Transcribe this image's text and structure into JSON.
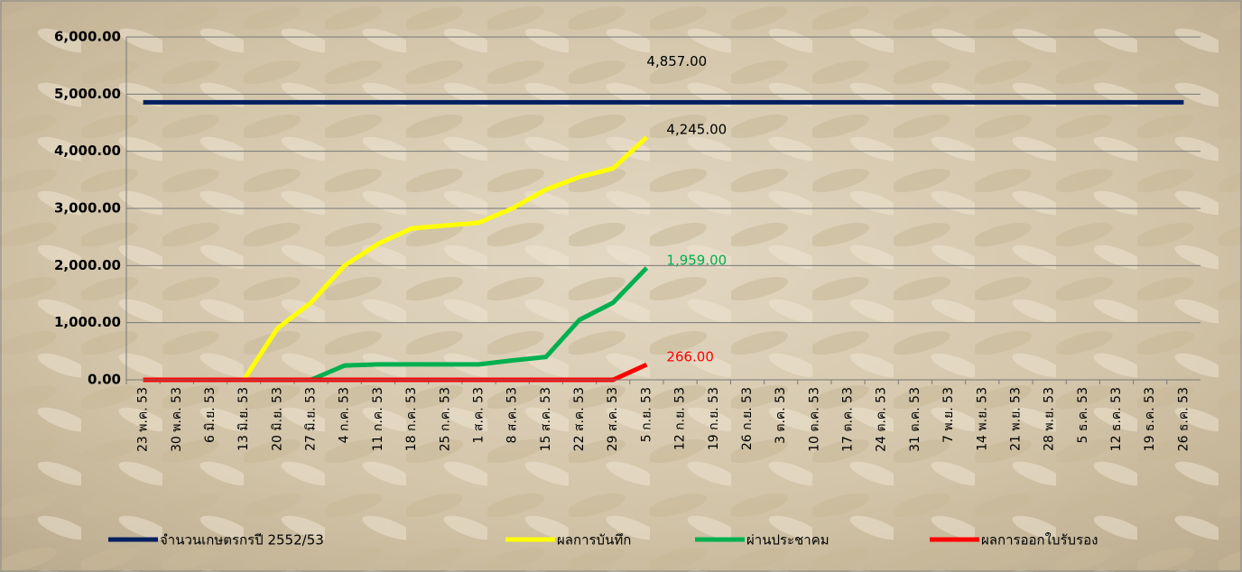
{
  "chart_data": {
    "type": "line",
    "categories": [
      "23 พ.ค. 53",
      "30 พ.ค. 53",
      "6 มิ.ย. 53",
      "13 มิ.ย. 53",
      "20 มิ.ย. 53",
      "27 มิ.ย. 53",
      "4 ก.ค. 53",
      "11 ก.ค. 53",
      "18 ก.ค. 53",
      "25 ก.ค. 53",
      "1 ส.ค. 53",
      "8 ส.ค. 53",
      "15 ส.ค. 53",
      "22 ส.ค. 53",
      "29 ส.ค. 53",
      "5 ก.ย. 53",
      "12 ก.ย. 53",
      "19 ก.ย. 53",
      "26 ก.ย. 53",
      "3 ต.ค. 53",
      "10 ต.ค. 53",
      "17 ต.ค. 53",
      "24 ต.ค. 53",
      "31 ต.ค. 53",
      "7 พ.ย. 53",
      "14 พ.ย. 53",
      "21 พ.ย. 53",
      "28 พ.ย. 53",
      "5 ธ.ค. 53",
      "12 ธ.ค. 53",
      "19 ธ.ค. 53",
      "26 ธ.ค. 53"
    ],
    "series": [
      {
        "name": "จำนวนเกษตรกรปี  2552/53",
        "color": "#002060",
        "label_color": "#000000",
        "values": [
          4857,
          4857,
          4857,
          4857,
          4857,
          4857,
          4857,
          4857,
          4857,
          4857,
          4857,
          4857,
          4857,
          4857,
          4857,
          4857,
          4857,
          4857,
          4857,
          4857,
          4857,
          4857,
          4857,
          4857,
          4857,
          4857,
          4857,
          4857,
          4857,
          4857,
          4857,
          4857
        ],
        "value_labels": [
          null,
          null,
          null,
          null,
          null,
          null,
          null,
          null,
          null,
          null,
          null,
          null,
          null,
          null,
          null,
          "4,857.00",
          null,
          null,
          null,
          null,
          null,
          null,
          null,
          null,
          null,
          null,
          null,
          null,
          null,
          null,
          null,
          null
        ]
      },
      {
        "name": "ผลการบันทึก",
        "color": "#ffff00",
        "label_color": "#000000",
        "values": [
          0,
          0,
          0,
          0,
          900,
          1350,
          2000,
          2380,
          2650,
          2700,
          2750,
          3000,
          3330,
          3550,
          3700,
          4245,
          null,
          null,
          null,
          null,
          null,
          null,
          null,
          null,
          null,
          null,
          null,
          null,
          null,
          null,
          null,
          null
        ],
        "value_labels": [
          null,
          null,
          null,
          null,
          null,
          null,
          null,
          null,
          null,
          null,
          null,
          null,
          null,
          null,
          null,
          "4,245.00",
          null,
          null,
          null,
          null,
          null,
          null,
          null,
          null,
          null,
          null,
          null,
          null,
          null,
          null,
          null,
          null
        ]
      },
      {
        "name": "ผ่านประชาคม",
        "color": "#00b050",
        "label_color": "#00b050",
        "values": [
          0,
          0,
          0,
          0,
          0,
          0,
          250,
          270,
          270,
          270,
          270,
          340,
          400,
          1050,
          1350,
          1959,
          null,
          null,
          null,
          null,
          null,
          null,
          null,
          null,
          null,
          null,
          null,
          null,
          null,
          null,
          null,
          null
        ],
        "value_labels": [
          null,
          null,
          null,
          null,
          null,
          null,
          null,
          null,
          null,
          null,
          null,
          null,
          null,
          null,
          null,
          "1,959.00",
          null,
          null,
          null,
          null,
          null,
          null,
          null,
          null,
          null,
          null,
          null,
          null,
          null,
          null,
          null,
          null
        ]
      },
      {
        "name": "ผลการออกใบรับรอง",
        "color": "#ff0000",
        "label_color": "#ff0000",
        "values": [
          0,
          0,
          0,
          0,
          0,
          0,
          0,
          0,
          0,
          0,
          0,
          0,
          0,
          0,
          0,
          266,
          null,
          null,
          null,
          null,
          null,
          null,
          null,
          null,
          null,
          null,
          null,
          null,
          null,
          null,
          null,
          null
        ],
        "value_labels": [
          null,
          null,
          null,
          null,
          null,
          null,
          null,
          null,
          null,
          null,
          null,
          null,
          null,
          null,
          null,
          "266.00",
          null,
          null,
          null,
          null,
          null,
          null,
          null,
          null,
          null,
          null,
          null,
          null,
          null,
          null,
          null,
          null
        ]
      }
    ],
    "ylim": [
      0,
      6000
    ],
    "yticks": [
      {
        "value": 0,
        "label": "0.00"
      },
      {
        "value": 1000,
        "label": "1,000.00"
      },
      {
        "value": 2000,
        "label": "2,000.00"
      },
      {
        "value": 3000,
        "label": "3,000.00"
      },
      {
        "value": 4000,
        "label": "4,000.00"
      },
      {
        "value": 5000,
        "label": "5,000.00"
      },
      {
        "value": 6000,
        "label": "6,000.00"
      }
    ],
    "grid": true,
    "legend": "bottom"
  }
}
